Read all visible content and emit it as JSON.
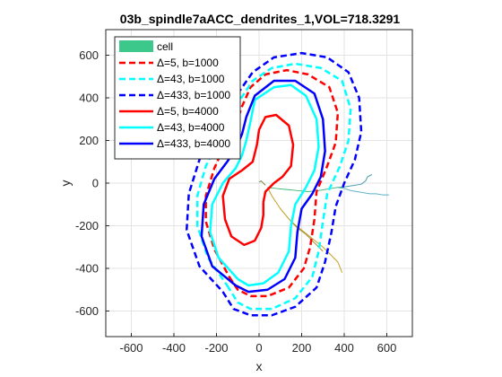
{
  "chart_data": {
    "type": "line",
    "title": "03b_spindle7aACC_dendrites_1,VOL=718.3291",
    "xlabel": "x",
    "ylabel": "y",
    "xlim": [
      -720,
      720
    ],
    "ylim": [
      -720,
      720
    ],
    "xticks": [
      -600,
      -400,
      -200,
      0,
      200,
      400,
      600
    ],
    "yticks": [
      -600,
      -400,
      -200,
      0,
      200,
      400,
      600
    ],
    "grid": true,
    "legend_position": "top-left",
    "series": [
      {
        "name": "cell",
        "kind": "neurites",
        "color": "#3cc88a",
        "dash": "solid",
        "width": 1,
        "segments": [
          {
            "color": "#3cb878",
            "points": [
              [
                40,
                -20
              ],
              [
                80,
                -25
              ],
              [
                130,
                -30
              ],
              [
                180,
                -35
              ],
              [
                230,
                -40
              ],
              [
                280,
                -35
              ],
              [
                310,
                -30
              ],
              [
                340,
                -25
              ],
              [
                370,
                -20
              ],
              [
                400,
                -18
              ]
            ]
          },
          {
            "color": "#5ab0c8",
            "points": [
              [
                370,
                -20
              ],
              [
                400,
                -25
              ],
              [
                430,
                -35
              ],
              [
                460,
                -40
              ],
              [
                490,
                -45
              ],
              [
                520,
                -50
              ],
              [
                550,
                -50
              ],
              [
                580,
                -55
              ],
              [
                610,
                -55
              ]
            ]
          },
          {
            "color": "#4aa0b0",
            "points": [
              [
                400,
                -18
              ],
              [
                450,
                -10
              ],
              [
                480,
                -5
              ],
              [
                500,
                10
              ],
              [
                510,
                30
              ],
              [
                530,
                40
              ]
            ]
          },
          {
            "color": "#c0a020",
            "points": [
              [
                40,
                -20
              ],
              [
                60,
                -60
              ],
              [
                100,
                -120
              ],
              [
                150,
                -180
              ],
              [
                200,
                -220
              ],
              [
                250,
                -260
              ],
              [
                300,
                -300
              ],
              [
                340,
                -340
              ],
              [
                370,
                -370
              ],
              [
                390,
                -420
              ]
            ]
          },
          {
            "color": "#a09030",
            "points": [
              [
                150,
                -180
              ],
              [
                180,
                -210
              ],
              [
                220,
                -240
              ],
              [
                260,
                -280
              ],
              [
                300,
                -320
              ]
            ]
          },
          {
            "color": "#7a8a40",
            "points": [
              [
                30,
                -10
              ],
              [
                20,
                0
              ],
              [
                10,
                10
              ],
              [
                0,
                5
              ]
            ]
          }
        ]
      },
      {
        "name": "Δ=5, b=1000",
        "color": "#ff0000",
        "dash": "dashed",
        "width": 2.5,
        "points": [
          [
            -140,
            -440
          ],
          [
            -100,
            -500
          ],
          [
            -40,
            -530
          ],
          [
            40,
            -530
          ],
          [
            140,
            -490
          ],
          [
            210,
            -400
          ],
          [
            240,
            -300
          ],
          [
            260,
            -170
          ],
          [
            270,
            -40
          ],
          [
            320,
            80
          ],
          [
            360,
            190
          ],
          [
            370,
            330
          ],
          [
            330,
            450
          ],
          [
            230,
            510
          ],
          [
            130,
            530
          ],
          [
            30,
            510
          ],
          [
            -40,
            450
          ],
          [
            -80,
            360
          ],
          [
            -110,
            270
          ],
          [
            -160,
            180
          ],
          [
            -210,
            70
          ],
          [
            -250,
            -60
          ],
          [
            -250,
            -180
          ],
          [
            -210,
            -310
          ],
          [
            -140,
            -440
          ]
        ]
      },
      {
        "name": "Δ=43, b=1000",
        "color": "#00ffff",
        "dash": "dashed",
        "width": 2.5,
        "points": [
          [
            -150,
            -480
          ],
          [
            -100,
            -560
          ],
          [
            -40,
            -590
          ],
          [
            60,
            -590
          ],
          [
            170,
            -540
          ],
          [
            250,
            -440
          ],
          [
            280,
            -320
          ],
          [
            300,
            -180
          ],
          [
            320,
            -50
          ],
          [
            380,
            80
          ],
          [
            420,
            200
          ],
          [
            430,
            350
          ],
          [
            390,
            480
          ],
          [
            290,
            540
          ],
          [
            170,
            560
          ],
          [
            60,
            540
          ],
          [
            -30,
            480
          ],
          [
            -90,
            390
          ],
          [
            -130,
            300
          ],
          [
            -190,
            200
          ],
          [
            -250,
            80
          ],
          [
            -290,
            -60
          ],
          [
            -290,
            -200
          ],
          [
            -240,
            -350
          ],
          [
            -150,
            -480
          ]
        ]
      },
      {
        "name": "Δ=433, b=1000",
        "color": "#0000ff",
        "dash": "dashed",
        "width": 2.5,
        "points": [
          [
            -170,
            -510
          ],
          [
            -120,
            -590
          ],
          [
            -40,
            -620
          ],
          [
            60,
            -620
          ],
          [
            170,
            -580
          ],
          [
            270,
            -490
          ],
          [
            310,
            -370
          ],
          [
            340,
            -230
          ],
          [
            360,
            -110
          ],
          [
            400,
            0
          ],
          [
            450,
            110
          ],
          [
            480,
            240
          ],
          [
            470,
            400
          ],
          [
            420,
            520
          ],
          [
            320,
            590
          ],
          [
            200,
            610
          ],
          [
            70,
            590
          ],
          [
            -30,
            520
          ],
          [
            -100,
            420
          ],
          [
            -150,
            330
          ],
          [
            -210,
            230
          ],
          [
            -280,
            110
          ],
          [
            -330,
            -50
          ],
          [
            -340,
            -220
          ],
          [
            -280,
            -390
          ],
          [
            -170,
            -510
          ]
        ]
      },
      {
        "name": "Δ=5, b=4000",
        "color": "#ff0000",
        "dash": "solid",
        "width": 2.5,
        "points": [
          [
            20,
            -90
          ],
          [
            20,
            -150
          ],
          [
            10,
            -210
          ],
          [
            -20,
            -270
          ],
          [
            -70,
            -290
          ],
          [
            -130,
            -250
          ],
          [
            -160,
            -170
          ],
          [
            -170,
            -60
          ],
          [
            -140,
            20
          ],
          [
            -80,
            60
          ],
          [
            -30,
            100
          ],
          [
            -10,
            180
          ],
          [
            0,
            250
          ],
          [
            30,
            310
          ],
          [
            80,
            320
          ],
          [
            140,
            270
          ],
          [
            160,
            180
          ],
          [
            150,
            80
          ],
          [
            110,
            30
          ],
          [
            70,
            0
          ],
          [
            30,
            -40
          ],
          [
            20,
            -90
          ]
        ]
      },
      {
        "name": "Δ=43, b=4000",
        "color": "#00ffff",
        "dash": "solid",
        "width": 2.5,
        "points": [
          [
            -100,
            -450
          ],
          [
            -50,
            -480
          ],
          [
            20,
            -470
          ],
          [
            90,
            -420
          ],
          [
            140,
            -320
          ],
          [
            150,
            -200
          ],
          [
            170,
            -100
          ],
          [
            220,
            -20
          ],
          [
            260,
            60
          ],
          [
            280,
            170
          ],
          [
            270,
            300
          ],
          [
            220,
            410
          ],
          [
            150,
            460
          ],
          [
            70,
            450
          ],
          [
            -20,
            390
          ],
          [
            -40,
            290
          ],
          [
            -60,
            200
          ],
          [
            -80,
            130
          ],
          [
            -110,
            70
          ],
          [
            -170,
            0
          ],
          [
            -220,
            -100
          ],
          [
            -230,
            -230
          ],
          [
            -190,
            -350
          ],
          [
            -100,
            -450
          ]
        ]
      },
      {
        "name": "Δ=433, b=4000",
        "color": "#0000ff",
        "dash": "solid",
        "width": 2.5,
        "points": [
          [
            -110,
            -480
          ],
          [
            -50,
            -510
          ],
          [
            40,
            -500
          ],
          [
            120,
            -450
          ],
          [
            170,
            -350
          ],
          [
            180,
            -230
          ],
          [
            200,
            -120
          ],
          [
            250,
            -50
          ],
          [
            290,
            30
          ],
          [
            310,
            150
          ],
          [
            300,
            300
          ],
          [
            260,
            420
          ],
          [
            170,
            480
          ],
          [
            70,
            480
          ],
          [
            -20,
            410
          ],
          [
            -60,
            310
          ],
          [
            -80,
            230
          ],
          [
            -110,
            160
          ],
          [
            -150,
            100
          ],
          [
            -210,
            20
          ],
          [
            -260,
            -100
          ],
          [
            -270,
            -250
          ],
          [
            -220,
            -390
          ],
          [
            -110,
            -480
          ]
        ]
      }
    ]
  }
}
